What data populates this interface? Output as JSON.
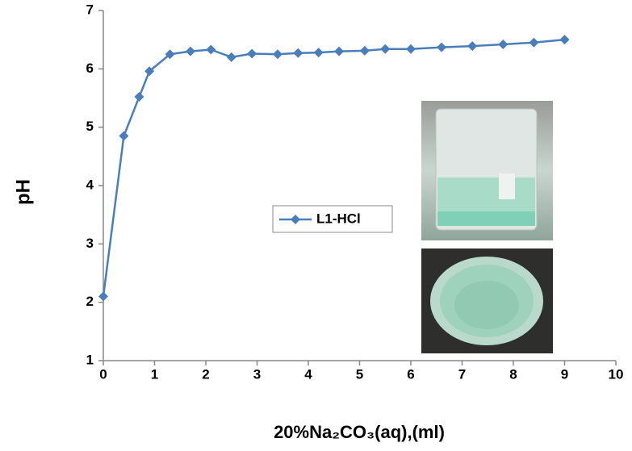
{
  "chart_data": {
    "type": "line",
    "xlabel": "20%Na₂CO₃(aq),(ml)",
    "ylabel": "pH",
    "x": [
      0,
      0.4,
      0.7,
      0.9,
      1.3,
      1.7,
      2.1,
      2.5,
      2.9,
      3.4,
      3.8,
      4.2,
      4.6,
      5.1,
      5.5,
      6.0,
      6.6,
      7.2,
      7.8,
      8.4,
      9.0
    ],
    "series": [
      {
        "name": "L1-HCl",
        "color": "#4a7ebb",
        "values": [
          2.1,
          4.85,
          5.52,
          5.96,
          6.25,
          6.3,
          6.33,
          6.2,
          6.26,
          6.25,
          6.27,
          6.28,
          6.3,
          6.31,
          6.34,
          6.34,
          6.37,
          6.39,
          6.42,
          6.45,
          6.5
        ]
      }
    ],
    "xlim": [
      0,
      10
    ],
    "xticks": [
      0,
      1,
      2,
      3,
      4,
      5,
      6,
      7,
      8,
      9,
      10
    ],
    "ylim": [
      1,
      7
    ],
    "yticks": [
      1,
      2,
      3,
      4,
      5,
      6,
      7
    ],
    "grid": false,
    "legend": "center"
  }
}
